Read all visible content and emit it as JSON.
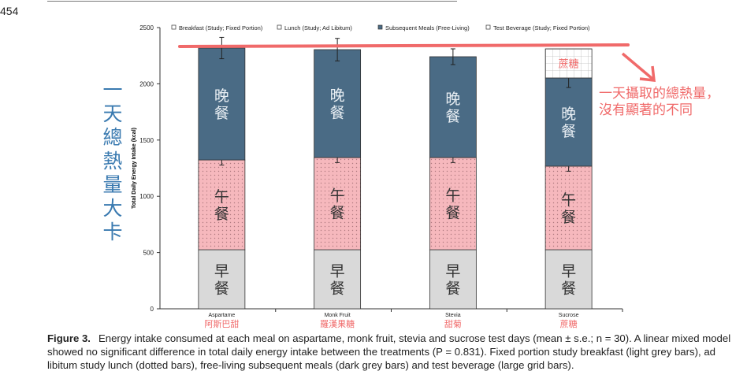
{
  "page_number": "454",
  "chart_data": {
    "type": "bar",
    "stacked": true,
    "ylabel": "Total Daily Energy Intake (kcal)",
    "ylim": [
      0,
      2500
    ],
    "yticks": [
      0,
      500,
      1000,
      1500,
      2000,
      2500
    ],
    "categories": [
      "Aspartame",
      "Monk Fruit",
      "Stevia",
      "Sucrose"
    ],
    "series": [
      {
        "name": "Breakfast (Study; Fixed Portion)",
        "values": [
          525,
          525,
          525,
          525
        ],
        "color": "#d9d9d9",
        "pattern": "none"
      },
      {
        "name": "Lunch (Study; Ad Libitum)",
        "values": [
          798,
          820,
          820,
          743
        ],
        "color": "#f6b8bd",
        "pattern": "dots",
        "error": [
          45,
          45,
          45,
          45
        ]
      },
      {
        "name": "Subsequent Meals (Free-Living)",
        "values": [
          995,
          959,
          896,
          784
        ],
        "color": "#4a6b85",
        "pattern": "none",
        "error": [
          95,
          100,
          70,
          85
        ]
      },
      {
        "name": "Test Beverage (Study; Fixed Portion)",
        "values": [
          0,
          0,
          0,
          259
        ],
        "color": "#ffffff",
        "pattern": "grid"
      }
    ],
    "legend": "top"
  },
  "annotations": {
    "category_zh": [
      "阿斯巴甜",
      "羅漢果糖",
      "甜菊",
      "蔗糖"
    ],
    "breakfast_zh": "早餐",
    "lunch_zh": "午餐",
    "dinner_zh": "晚餐",
    "beverage_zh": "蔗糖",
    "yaxis_zh": "一天總熱量 大卡",
    "note_line1": "一天攝取的總熱量，",
    "note_line2": "沒有顯著的不同",
    "colors": {
      "annotation": "#f06a6a",
      "yaxis_zh": "#3a7ab0"
    }
  },
  "caption": {
    "label": "Figure 3.",
    "text": "Energy intake consumed at each meal on aspartame, monk fruit, stevia and sucrose test days (mean ± s.e.; n = 30). A linear mixed model showed no significant difference in total daily energy intake between the treatments (P = 0.831). Fixed portion study breakfast (light grey bars), ad libitum study lunch (dotted bars), free-living subsequent meals (dark grey bars) and test beverage (large grid bars)."
  }
}
